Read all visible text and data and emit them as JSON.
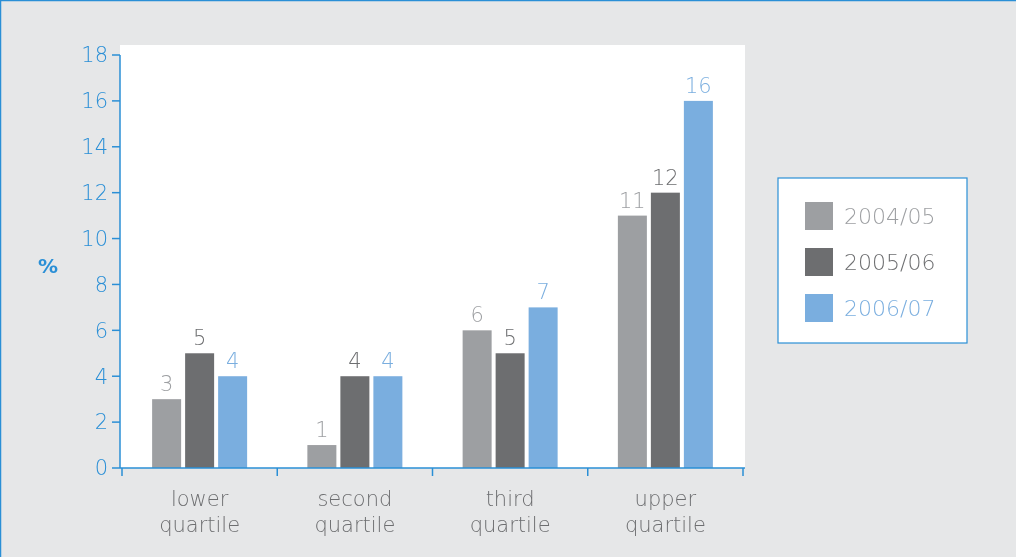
{
  "chart_data": {
    "type": "bar",
    "ylabel": "%",
    "categories": [
      "lower quartile",
      "second quartile",
      "third quartile",
      "upper quartile"
    ],
    "series": [
      {
        "name": "2004/05",
        "color": "#9d9fa2",
        "values": [
          3,
          1,
          6,
          11
        ]
      },
      {
        "name": "2005/06",
        "color": "#6d6e70",
        "values": [
          5,
          4,
          5,
          12
        ]
      },
      {
        "name": "2006/07",
        "color": "#7aaedf",
        "values": [
          4,
          4,
          7,
          16
        ]
      }
    ],
    "ylim": [
      0,
      18
    ],
    "yticks": [
      0,
      2,
      4,
      6,
      8,
      10,
      12,
      14,
      16,
      18
    ],
    "data_labels": true,
    "legend": "right",
    "grid": false
  }
}
